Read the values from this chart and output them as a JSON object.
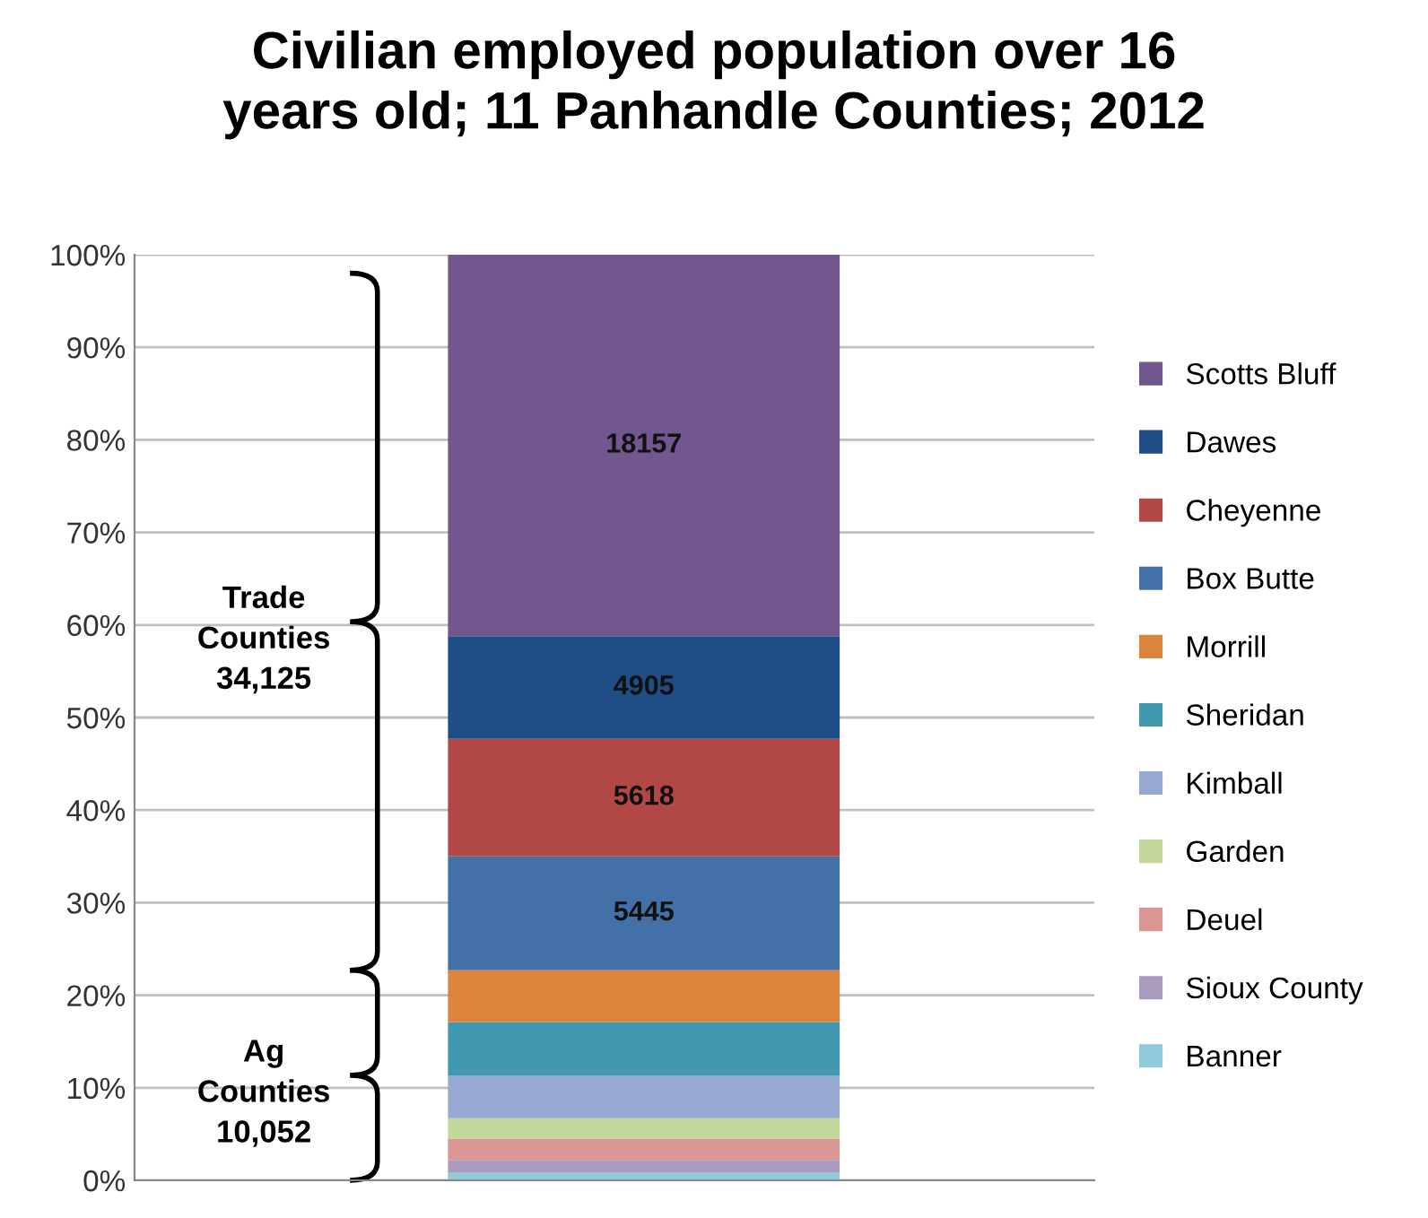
{
  "chart_data": {
    "type": "bar",
    "title": "Civilian employed population over 16\nyears old; 11 Panhandle Counties; 2012",
    "categories": [
      null
    ],
    "stacked": true,
    "series": [
      {
        "name": "Banner",
        "color": "#8fc9dc",
        "values": [
          0.8
        ]
      },
      {
        "name": "Sioux County",
        "color": "#a99bbd",
        "values": [
          1.4
        ]
      },
      {
        "name": "Deuel",
        "color": "#d99694",
        "values": [
          2.3
        ]
      },
      {
        "name": "Garden",
        "color": "#c3d69b",
        "values": [
          2.2
        ]
      },
      {
        "name": "Kimball",
        "color": "#95a9d2",
        "values": [
          4.6
        ]
      },
      {
        "name": "Sheridan",
        "color": "#4198af",
        "values": [
          5.8
        ]
      },
      {
        "name": "Morrill",
        "color": "#dc843c",
        "values": [
          5.6
        ]
      },
      {
        "name": "Box Butte",
        "color": "#4470a8",
        "values": [
          12.3
        ]
      },
      {
        "name": "Cheyenne",
        "color": "#b14845",
        "values": [
          12.7
        ]
      },
      {
        "name": "Dawes",
        "color": "#1f4e87",
        "values": [
          11.1
        ]
      },
      {
        "name": "Scotts Bluff",
        "color": "#72578f",
        "values": [
          41.2
        ]
      }
    ],
    "ylim": [
      0,
      100
    ],
    "yticks": [
      {
        "value": 0,
        "label": "0%"
      },
      {
        "value": 10,
        "label": "10%"
      },
      {
        "value": 20,
        "label": "20%"
      },
      {
        "value": 30,
        "label": "30%"
      },
      {
        "value": 40,
        "label": "40%"
      },
      {
        "value": 50,
        "label": "50%"
      },
      {
        "value": 60,
        "label": "60%"
      },
      {
        "value": 70,
        "label": "70%"
      },
      {
        "value": 80,
        "label": "80%"
      },
      {
        "value": 90,
        "label": "90%"
      },
      {
        "value": 100,
        "label": "100%"
      }
    ],
    "grid": "y",
    "legend": "right",
    "annotations": [
      "Trade\nCounties\n34,125",
      "Ag\nCounties\n10,052",
      "5445",
      "5618",
      "4905",
      "18157"
    ]
  }
}
